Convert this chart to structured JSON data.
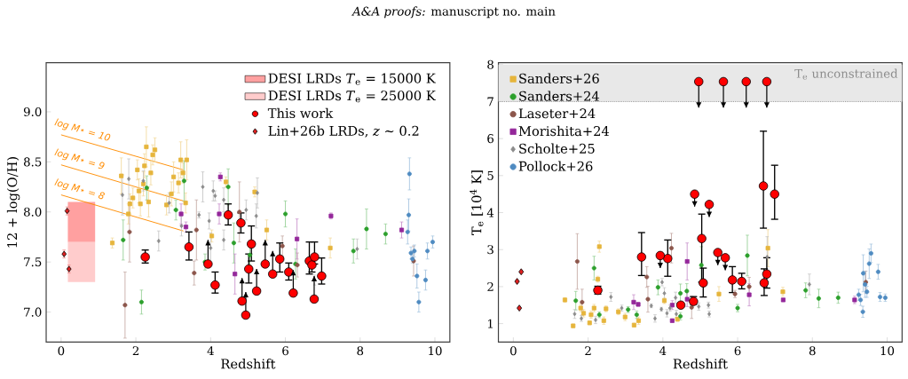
{
  "chart_data": [
    {
      "type": "scatter",
      "annotations": [
        "*A&A proofs:* manuscript no. main"
      ],
      "xlabel": "Redshift",
      "ylabel": "12 + log(O/H)",
      "xlim": [
        -0.4,
        10.4
      ],
      "ylim": [
        6.7,
        9.49
      ],
      "xticks": [
        0,
        2,
        4,
        6,
        8,
        10
      ],
      "yticks": [
        {
          "value": 7.0,
          "label": "7.0"
        },
        {
          "value": 7.5,
          "label": "7.5"
        },
        {
          "value": 8.0,
          "label": "8.0"
        },
        {
          "value": 8.5,
          "label": "8.5"
        },
        {
          "value": 9.0,
          "label": "9.0"
        }
      ],
      "legend": "top right",
      "series": [
        {
          "type": "bar",
          "name": "DESI LRDs *T*$_{e}$ = 15000 K",
          "color": "#ffa0a0",
          "x": [
            0.545
          ],
          "base": [
            7.7
          ],
          "values": [
            0.4
          ]
        },
        {
          "type": "bar",
          "name": "DESI LRDs *T*$_{e}$ = 25000 K",
          "color": "#ffcccc",
          "x": [
            0.545
          ],
          "base": [
            7.3
          ],
          "values": [
            0.4
          ]
        },
        {
          "type": "line",
          "name": "log M⋆ = 10",
          "color": "#ff8c00",
          "x": [
            0.0,
            3.27
          ],
          "values": [
            8.77,
            8.42
          ]
        },
        {
          "type": "line",
          "name": "log M⋆ = 9",
          "color": "#ff8c00",
          "x": [
            0.0,
            3.27
          ],
          "values": [
            8.47,
            8.11
          ]
        },
        {
          "type": "line",
          "name": "log M⋆ = 8",
          "color": "#ff8c00",
          "x": [
            0.0,
            3.27
          ],
          "values": [
            8.17,
            7.81
          ]
        },
        {
          "color": "#e6b53c",
          "marker": "square",
          "x": [
            1.37,
            1.61,
            2.04,
            2.28,
            2.23,
            2.51,
            2.45,
            2.4,
            2.2,
            2.08,
            1.92,
            1.84,
            2.12,
            2.34,
            1.8,
            3.01,
            2.95,
            2.82,
            3.14,
            3.26,
            3.2,
            3.36,
            3.33,
            4.03,
            4.41,
            5.18,
            5.5,
            7.2
          ],
          "values": [
            7.69,
            8.36,
            8.42,
            8.65,
            8.46,
            8.62,
            8.57,
            8.39,
            8.28,
            8.21,
            8.14,
            8.08,
            8.08,
            8.1,
            7.98,
            8.35,
            8.18,
            8.07,
            8.29,
            8.39,
            8.52,
            8.52,
            8.09,
            7.76,
            8.3,
            8.2,
            7.82,
            7.64
          ],
          "errors": [
            0.05,
            0.18,
            0.1,
            0.2,
            0.12,
            0.12,
            0.1,
            0.12,
            0.12,
            0.12,
            0.1,
            0.1,
            0.12,
            0.15,
            0.1,
            0.15,
            0.12,
            0.1,
            0.1,
            0.1,
            0.18,
            0.2,
            0.1,
            0.06,
            0.05,
            0.05,
            0.1,
            0.1
          ]
        },
        {
          "color": "#2ca02c",
          "marker": "circle",
          "x": [
            1.66,
            2.15,
            2.29,
            3.29,
            3.07,
            3.85,
            4.47,
            4.62,
            5.05,
            6.0,
            6.27,
            7.82,
            8.17,
            8.68
          ],
          "values": [
            7.72,
            7.1,
            8.24,
            8.31,
            8.02,
            7.5,
            8.25,
            7.69,
            7.57,
            7.98,
            7.48,
            7.61,
            7.83,
            7.78
          ],
          "errors": [
            0.2,
            0.12,
            0.12,
            0.2,
            0.1,
            0.08,
            0.18,
            0.2,
            0.1,
            0.13,
            0.15,
            0.12,
            0.2,
            0.1
          ]
        },
        {
          "color": "#8c564b",
          "marker": "circle",
          "x": [
            1.71,
            1.83,
            3.62,
            3.56,
            4.77,
            5.92,
            6.32,
            9.43
          ],
          "values": [
            7.07,
            7.8,
            7.82,
            7.39,
            8.0,
            7.66,
            7.47,
            7.51
          ],
          "errors": [
            0.33,
            0.3,
            0.3,
            0.12,
            0.3,
            0.1,
            0.12,
            0.15
          ]
        },
        {
          "color": "#94279a",
          "marker": "square",
          "x": [
            3.21,
            3.34,
            4.26,
            4.23,
            4.65,
            6.31,
            7.22,
            9.11
          ],
          "values": [
            7.98,
            7.85,
            8.35,
            7.98,
            7.38,
            7.73,
            7.96,
            7.82
          ],
          "errors": [
            0.1,
            0.05,
            0.04,
            0.1,
            0.2,
            0.2,
            0.03,
            0.08
          ]
        },
        {
          "color": "#8c8c8c",
          "marker": "diamond",
          "x": [
            1.64,
            1.81,
            2.2,
            2.61,
            2.89,
            3.22,
            3.69,
            3.79,
            3.96,
            4.07,
            4.12,
            4.0,
            4.35,
            4.35,
            4.95,
            5.22,
            5.25,
            6.78,
            7.92
          ],
          "values": [
            8.17,
            8.33,
            8.31,
            7.71,
            8.09,
            7.86,
            7.97,
            8.25,
            7.91,
            8.21,
            8.16,
            7.64,
            8.12,
            7.72,
            8.02,
            7.96,
            8.19,
            7.32,
            7.63
          ],
          "errors": [
            0.2,
            0.2,
            0.1,
            0.1,
            0.1,
            0.1,
            0.03,
            0.15,
            0.08,
            0.1,
            0.05,
            0.15,
            0.12,
            0.1,
            0.1,
            0.12,
            0.15,
            0.05,
            0.1
          ]
        },
        {
          "color": "#4f8bc1",
          "marker": "circle",
          "x": [
            9.32,
            9.3,
            9.27,
            9.36,
            9.45,
            9.4,
            9.52,
            9.57,
            9.75,
            9.8,
            9.94
          ],
          "values": [
            8.38,
            7.97,
            7.8,
            7.59,
            7.61,
            7.53,
            7.36,
            7.1,
            7.32,
            7.61,
            7.7
          ],
          "errors": [
            0.16,
            0.16,
            0.12,
            0.06,
            0.06,
            0.04,
            0.12,
            0.1,
            0.1,
            0.08,
            0.06
          ]
        },
        {
          "name": "This work",
          "color": "#ff0000",
          "marker": "circle",
          "x": [
            2.25,
            3.42,
            4.12,
            4.47,
            4.81,
            5.02,
            5.09,
            5.85,
            6.09,
            6.64,
            6.71,
            6.78,
            6.97
          ],
          "values": [
            7.55,
            7.65,
            7.27,
            7.97,
            7.89,
            7.43,
            7.68,
            7.53,
            7.4,
            7.51,
            7.47,
            7.55,
            7.36
          ],
          "errors": [
            [
              7.49,
              7.62
            ],
            [
              7.52,
              7.8
            ],
            [
              7.19,
              7.4
            ],
            [
              7.87,
              8.08
            ],
            [
              7.79,
              7.99
            ],
            [
              7.29,
              7.58
            ],
            [
              7.51,
              7.86
            ],
            [
              7.4,
              7.69
            ],
            [
              7.32,
              7.49
            ],
            [
              7.38,
              7.7
            ],
            [
              7.4,
              7.54
            ],
            [
              7.48,
              7.7
            ],
            [
              7.28,
              7.54
            ]
          ]
        },
        {
          "name": "Lin+26b LRDs, *z* ∼ 0.2",
          "color": "#e02020",
          "marker": "diamond",
          "x": [
            0.16,
            0.08,
            0.21
          ],
          "values": [
            8.01,
            7.58,
            7.43
          ],
          "errors": [
            0.04,
            0.04,
            0.04
          ]
        },
        {
          "color": "#ff0000",
          "marker": "circle",
          "x": [
            3.93,
            4.84,
            4.94,
            5.23,
            5.46,
            5.66,
            6.21,
            6.77
          ],
          "values": [
            7.48,
            7.11,
            6.97,
            7.21,
            7.48,
            7.38,
            7.19,
            7.13
          ],
          "errors": [
            [
              7.48,
              7.72
            ],
            [
              7.11,
              7.34
            ],
            [
              6.97,
              7.2
            ],
            [
              7.21,
              7.43
            ],
            [
              7.48,
              7.72
            ],
            [
              7.38,
              7.61
            ],
            [
              7.19,
              7.42
            ],
            [
              7.13,
              7.36
            ]
          ]
        }
      ]
    },
    {
      "type": "scatter",
      "xlabel": "Redshift",
      "ylabel": "T$_{e}$ [10$^{4}$ K]",
      "xlim": [
        -0.4,
        10.4
      ],
      "ylim": [
        0.5,
        8.05
      ],
      "xticks": [
        0,
        2,
        4,
        6,
        8,
        10
      ],
      "yticks": [
        1,
        2,
        3,
        4,
        5,
        6,
        7,
        8
      ],
      "legend": "top left",
      "bands": [
        {
          "axis": "y",
          "from": 7,
          "to": 8,
          "label": "T$_{e}$ unconstrained",
          "color": "#e8e8e8"
        }
      ],
      "series": [
        {
          "name": "Sanders+26",
          "color": "#e6b53c",
          "marker": "square",
          "x": [
            1.38,
            1.6,
            1.8,
            1.88,
            2.04,
            2.08,
            2.16,
            2.26,
            2.3,
            2.42,
            2.48,
            2.81,
            2.99,
            3.23,
            3.35,
            4.04,
            4.39,
            5.5,
            6.81,
            7.21
          ],
          "values": [
            1.64,
            0.94,
            1.42,
            1.28,
            1.02,
            1.24,
            1.42,
            2.2,
            3.08,
            1.08,
            1.4,
            1.32,
            1.18,
            0.96,
            1.08,
            1.62,
            1.12,
            1.8,
            3.04,
            1.86
          ],
          "errors": [
            0.06,
            0.05,
            0.1,
            0.1,
            0.05,
            0.1,
            0.1,
            0.08,
            0.15,
            0.1,
            0.08,
            0.08,
            0.1,
            0.05,
            0.1,
            0.08,
            0.06,
            0.2,
            0.5,
            0.12
          ]
        },
        {
          "name": "Sanders+24",
          "color": "#2ca02c",
          "marker": "circle",
          "x": [
            1.67,
            2.16,
            2.3,
            3.07,
            3.3,
            3.87,
            4.47,
            4.47,
            4.64,
            5.03,
            6.0,
            6.26,
            7.82,
            8.17,
            8.69
          ],
          "values": [
            1.62,
            2.5,
            1.24,
            1.38,
            1.24,
            1.98,
            1.82,
            1.2,
            1.88,
            2.58,
            1.42,
            2.84,
            1.9,
            1.68,
            1.7
          ],
          "errors": [
            0.25,
            0.32,
            0.08,
            0.08,
            0.1,
            0.2,
            0.25,
            0.1,
            0.2,
            0.5,
            0.1,
            0.55,
            0.2,
            0.25,
            0.15
          ]
        },
        {
          "name": "Laseter+24",
          "color": "#8c564b",
          "marker": "circle",
          "x": [
            1.71,
            1.84,
            3.57,
            3.6,
            4.23,
            4.77,
            5.93,
            6.31,
            9.43
          ],
          "values": [
            2.68,
            1.58,
            2.26,
            1.66,
            3.04,
            1.44,
            1.8,
            2.0,
            2.12
          ],
          "errors": [
            0.75,
            0.35,
            0.28,
            0.35,
            0.4,
            0.3,
            0.1,
            0.25,
            0.3
          ]
        },
        {
          "name": "Morishita+24",
          "color": "#94279a",
          "marker": "square",
          "x": [
            3.22,
            3.34,
            4.25,
            4.25,
            4.65,
            4.65,
            6.31,
            7.22,
            9.13
          ],
          "values": [
            1.58,
            1.52,
            1.5,
            1.08,
            2.68,
            1.66,
            1.78,
            1.64,
            1.64
          ],
          "errors": [
            0.2,
            0.05,
            0.12,
            0.04,
            0.5,
            0.2,
            0.3,
            0.04,
            0.1
          ]
        },
        {
          "name": "Scholte+25",
          "color": "#8c8c8c",
          "marker": "diamond",
          "x": [
            1.64,
            1.82,
            2.2,
            2.61,
            2.9,
            3.69,
            3.79,
            3.96,
            3.98,
            4.04,
            4.11,
            4.19,
            4.34,
            4.36,
            4.96,
            5.22,
            5.24,
            6.79,
            7.92
          ],
          "values": [
            1.26,
            1.14,
            1.1,
            1.72,
            1.42,
            1.48,
            1.14,
            1.39,
            2.12,
            1.82,
            1.28,
            1.42,
            1.7,
            1.26,
            1.46,
            1.5,
            1.26,
            2.8,
            2.06
          ],
          "errors": [
            0.12,
            0.08,
            0.1,
            0.12,
            0.08,
            0.05,
            0.1,
            0.05,
            0.1,
            0.15,
            0.1,
            0.08,
            0.15,
            0.1,
            0.1,
            0.08,
            0.08,
            0.55,
            0.28
          ]
        },
        {
          "name": "Pollock+26",
          "color": "#4f8bc1",
          "marker": "circle",
          "x": [
            9.24,
            9.29,
            9.35,
            9.36,
            9.41,
            9.46,
            9.52,
            9.57,
            9.76,
            9.81,
            9.95
          ],
          "values": [
            1.78,
            1.64,
            1.32,
            2.36,
            2.06,
            1.86,
            2.62,
            2.9,
            2.4,
            1.72,
            1.7
          ],
          "errors": [
            0.15,
            0.15,
            0.15,
            0.5,
            0.35,
            0.15,
            0.4,
            0.25,
            0.2,
            0.12,
            0.1
          ]
        },
        {
          "color": "#e02020",
          "marker": "diamond",
          "x": [
            0.1,
            0.21,
            0.16
          ],
          "values": [
            2.14,
            2.4,
            1.42
          ]
        },
        {
          "color": "#ff0000",
          "marker": "circle",
          "x": [
            2.26,
            3.43,
            4.13,
            4.48,
            4.82,
            5.04,
            5.08,
            5.86,
            6.11,
            6.69,
            6.71,
            6.78,
            6.99
          ],
          "values": [
            1.9,
            2.8,
            2.76,
            1.5,
            1.6,
            3.3,
            2.1,
            2.18,
            2.14,
            4.72,
            2.1,
            2.34,
            4.5
          ],
          "errors": [
            [
              1.8,
              2.01
            ],
            [
              2.3,
              3.46
            ],
            [
              2.28,
              3.26
            ],
            [
              1.45,
              1.56
            ],
            [
              1.52,
              1.73
            ],
            [
              2.12,
              3.96
            ],
            [
              1.72,
              2.5
            ],
            [
              1.84,
              2.54
            ],
            [
              1.94,
              2.36
            ],
            [
              3.58,
              6.2
            ],
            [
              1.76,
              2.48
            ],
            [
              1.96,
              2.78
            ],
            [
              3.82,
              5.28
            ]
          ]
        },
        {
          "color": "#ff0000",
          "marker": "circle",
          "x": [
            3.93,
            4.85,
            4.96,
            5.24,
            5.47,
            5.62,
            5.67,
            6.23,
            6.78
          ],
          "values": [
            2.84,
            4.5,
            7.54,
            4.22,
            2.92,
            7.54,
            2.78,
            7.54,
            7.54
          ],
          "errors": [
            [
              2.5,
              2.84
            ],
            [
              4.16,
              4.5
            ],
            [
              6.84,
              7.54
            ],
            [
              3.88,
              4.22
            ],
            [
              2.58,
              2.92
            ],
            [
              6.84,
              7.54
            ],
            [
              2.44,
              2.78
            ],
            [
              6.84,
              7.54
            ],
            [
              6.84,
              7.54
            ]
          ]
        }
      ]
    }
  ]
}
